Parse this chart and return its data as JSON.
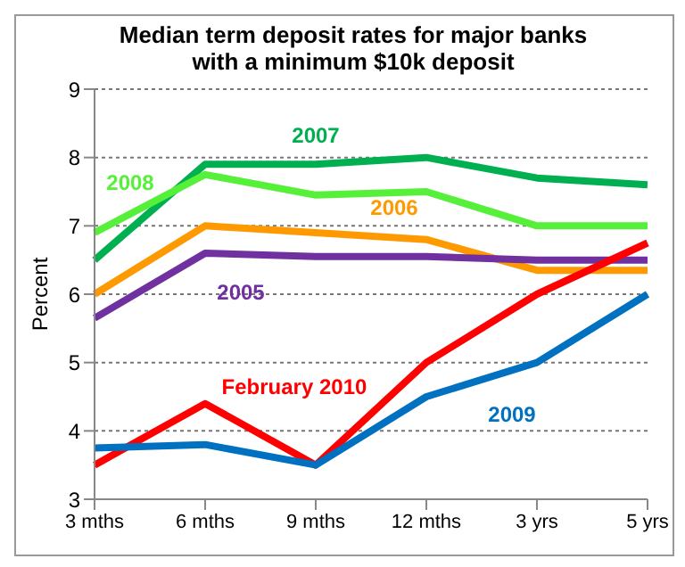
{
  "chart_data": {
    "type": "line",
    "title": "Median term deposit rates for major banks with a minimum $10k deposit",
    "ylabel": "Percent",
    "categories": [
      "3 mths",
      "6 mths",
      "9 mths",
      "12 mths",
      "3 yrs",
      "5 yrs"
    ],
    "series": [
      {
        "name": "2007",
        "color": "#00b050",
        "values": [
          6.5,
          7.9,
          7.9,
          8.0,
          7.7,
          7.6
        ]
      },
      {
        "name": "2008",
        "color": "#56f03a",
        "values": [
          6.9,
          7.75,
          7.45,
          7.5,
          7.0,
          7.0
        ]
      },
      {
        "name": "2006",
        "color": "#ff9900",
        "values": [
          6.0,
          7.0,
          6.9,
          6.8,
          6.35,
          6.35
        ]
      },
      {
        "name": "2005",
        "color": "#7030a0",
        "values": [
          5.65,
          6.6,
          6.55,
          6.55,
          6.5,
          6.5
        ]
      },
      {
        "name": "February 2010",
        "color": "#ff0000",
        "values": [
          3.5,
          4.4,
          3.5,
          5.0,
          6.0,
          6.75
        ]
      },
      {
        "name": "2009",
        "color": "#0070c0",
        "values": [
          3.75,
          3.8,
          3.5,
          4.5,
          5.0,
          6.0
        ]
      }
    ],
    "ylim": [
      3,
      9
    ],
    "yticks": [
      3,
      4,
      5,
      6,
      7,
      8,
      9
    ],
    "grid": "y",
    "legend": false,
    "marker": "none",
    "line_style": "solid"
  }
}
